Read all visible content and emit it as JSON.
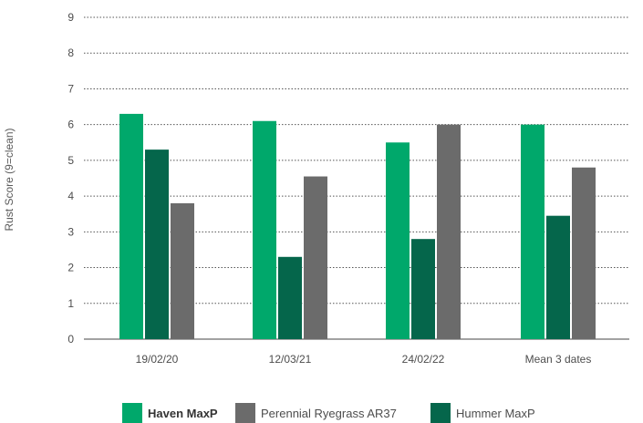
{
  "chart_data": {
    "type": "bar",
    "ylabel": "Rust Score (9=clean)",
    "ylim": [
      0,
      9
    ],
    "yticks": [
      "0",
      "1",
      "2",
      "3",
      "4",
      "5",
      "6",
      "7",
      "8",
      "9"
    ],
    "categories": [
      "19/02/20",
      "12/03/21",
      "24/02/22",
      "Mean 3 dates"
    ],
    "grid": true,
    "legend_position": "bottom",
    "series": [
      {
        "name": "Haven MaxP",
        "color": "#00a86b",
        "values": [
          6.3,
          6.1,
          5.5,
          6.0
        ]
      },
      {
        "name": "Hummer MaxP",
        "color": "#05664b",
        "values": [
          5.3,
          2.3,
          2.8,
          3.45
        ]
      },
      {
        "name": "Perennial Ryegrass AR37",
        "color": "#6b6b6b",
        "values": [
          3.8,
          4.55,
          6.0,
          4.8
        ]
      }
    ],
    "legend_order": [
      "Haven MaxP",
      "Perennial Ryegrass AR37",
      "Hummer MaxP"
    ],
    "legend_bold": [
      "Haven MaxP"
    ]
  }
}
